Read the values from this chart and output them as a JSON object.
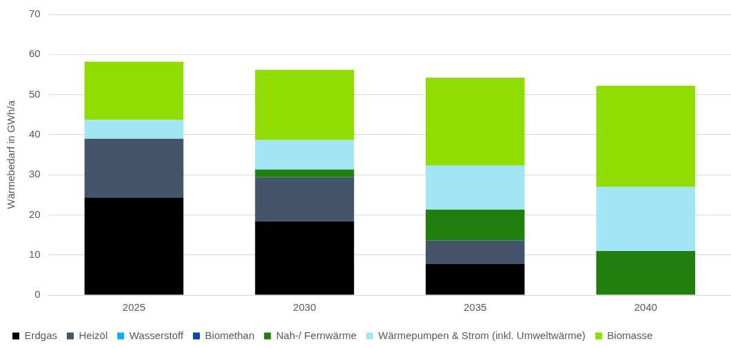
{
  "chart_data": {
    "type": "bar",
    "stacked": true,
    "ylabel": "Wärmebedarf in GWh/a",
    "categories": [
      "2025",
      "2030",
      "2035",
      "2040"
    ],
    "series": [
      {
        "name": "Erdgas",
        "color": "#000000",
        "values": [
          24.3,
          18.4,
          7.7,
          null
        ]
      },
      {
        "name": "Heizöl",
        "color": "#44546a",
        "values": [
          14.7,
          11.0,
          5.9,
          null
        ]
      },
      {
        "name": "Wasserstoff",
        "color": "#00b0f0",
        "values": [
          null,
          null,
          null,
          null
        ]
      },
      {
        "name": "Biomethan",
        "color": "#0047ab",
        "values": [
          null,
          null,
          null,
          null
        ]
      },
      {
        "name": "Nah-/ Fernwärme",
        "color": "#217f10",
        "values": [
          null,
          1.9,
          7.7,
          11.0
        ]
      },
      {
        "name": "Wärmepumpen & Strom (inkl. Umweltwärme)",
        "color": "#a3e4f5",
        "values": [
          4.7,
          7.4,
          11.0,
          16.0
        ]
      },
      {
        "name": "Biomasse",
        "color": "#8fdc00",
        "values": [
          14.5,
          17.5,
          21.9,
          25.2
        ]
      }
    ],
    "ylim": [
      0,
      70
    ],
    "yticks": [
      0,
      10,
      20,
      30,
      40,
      50,
      60,
      70
    ],
    "grid": "y",
    "legend": "bottom"
  }
}
